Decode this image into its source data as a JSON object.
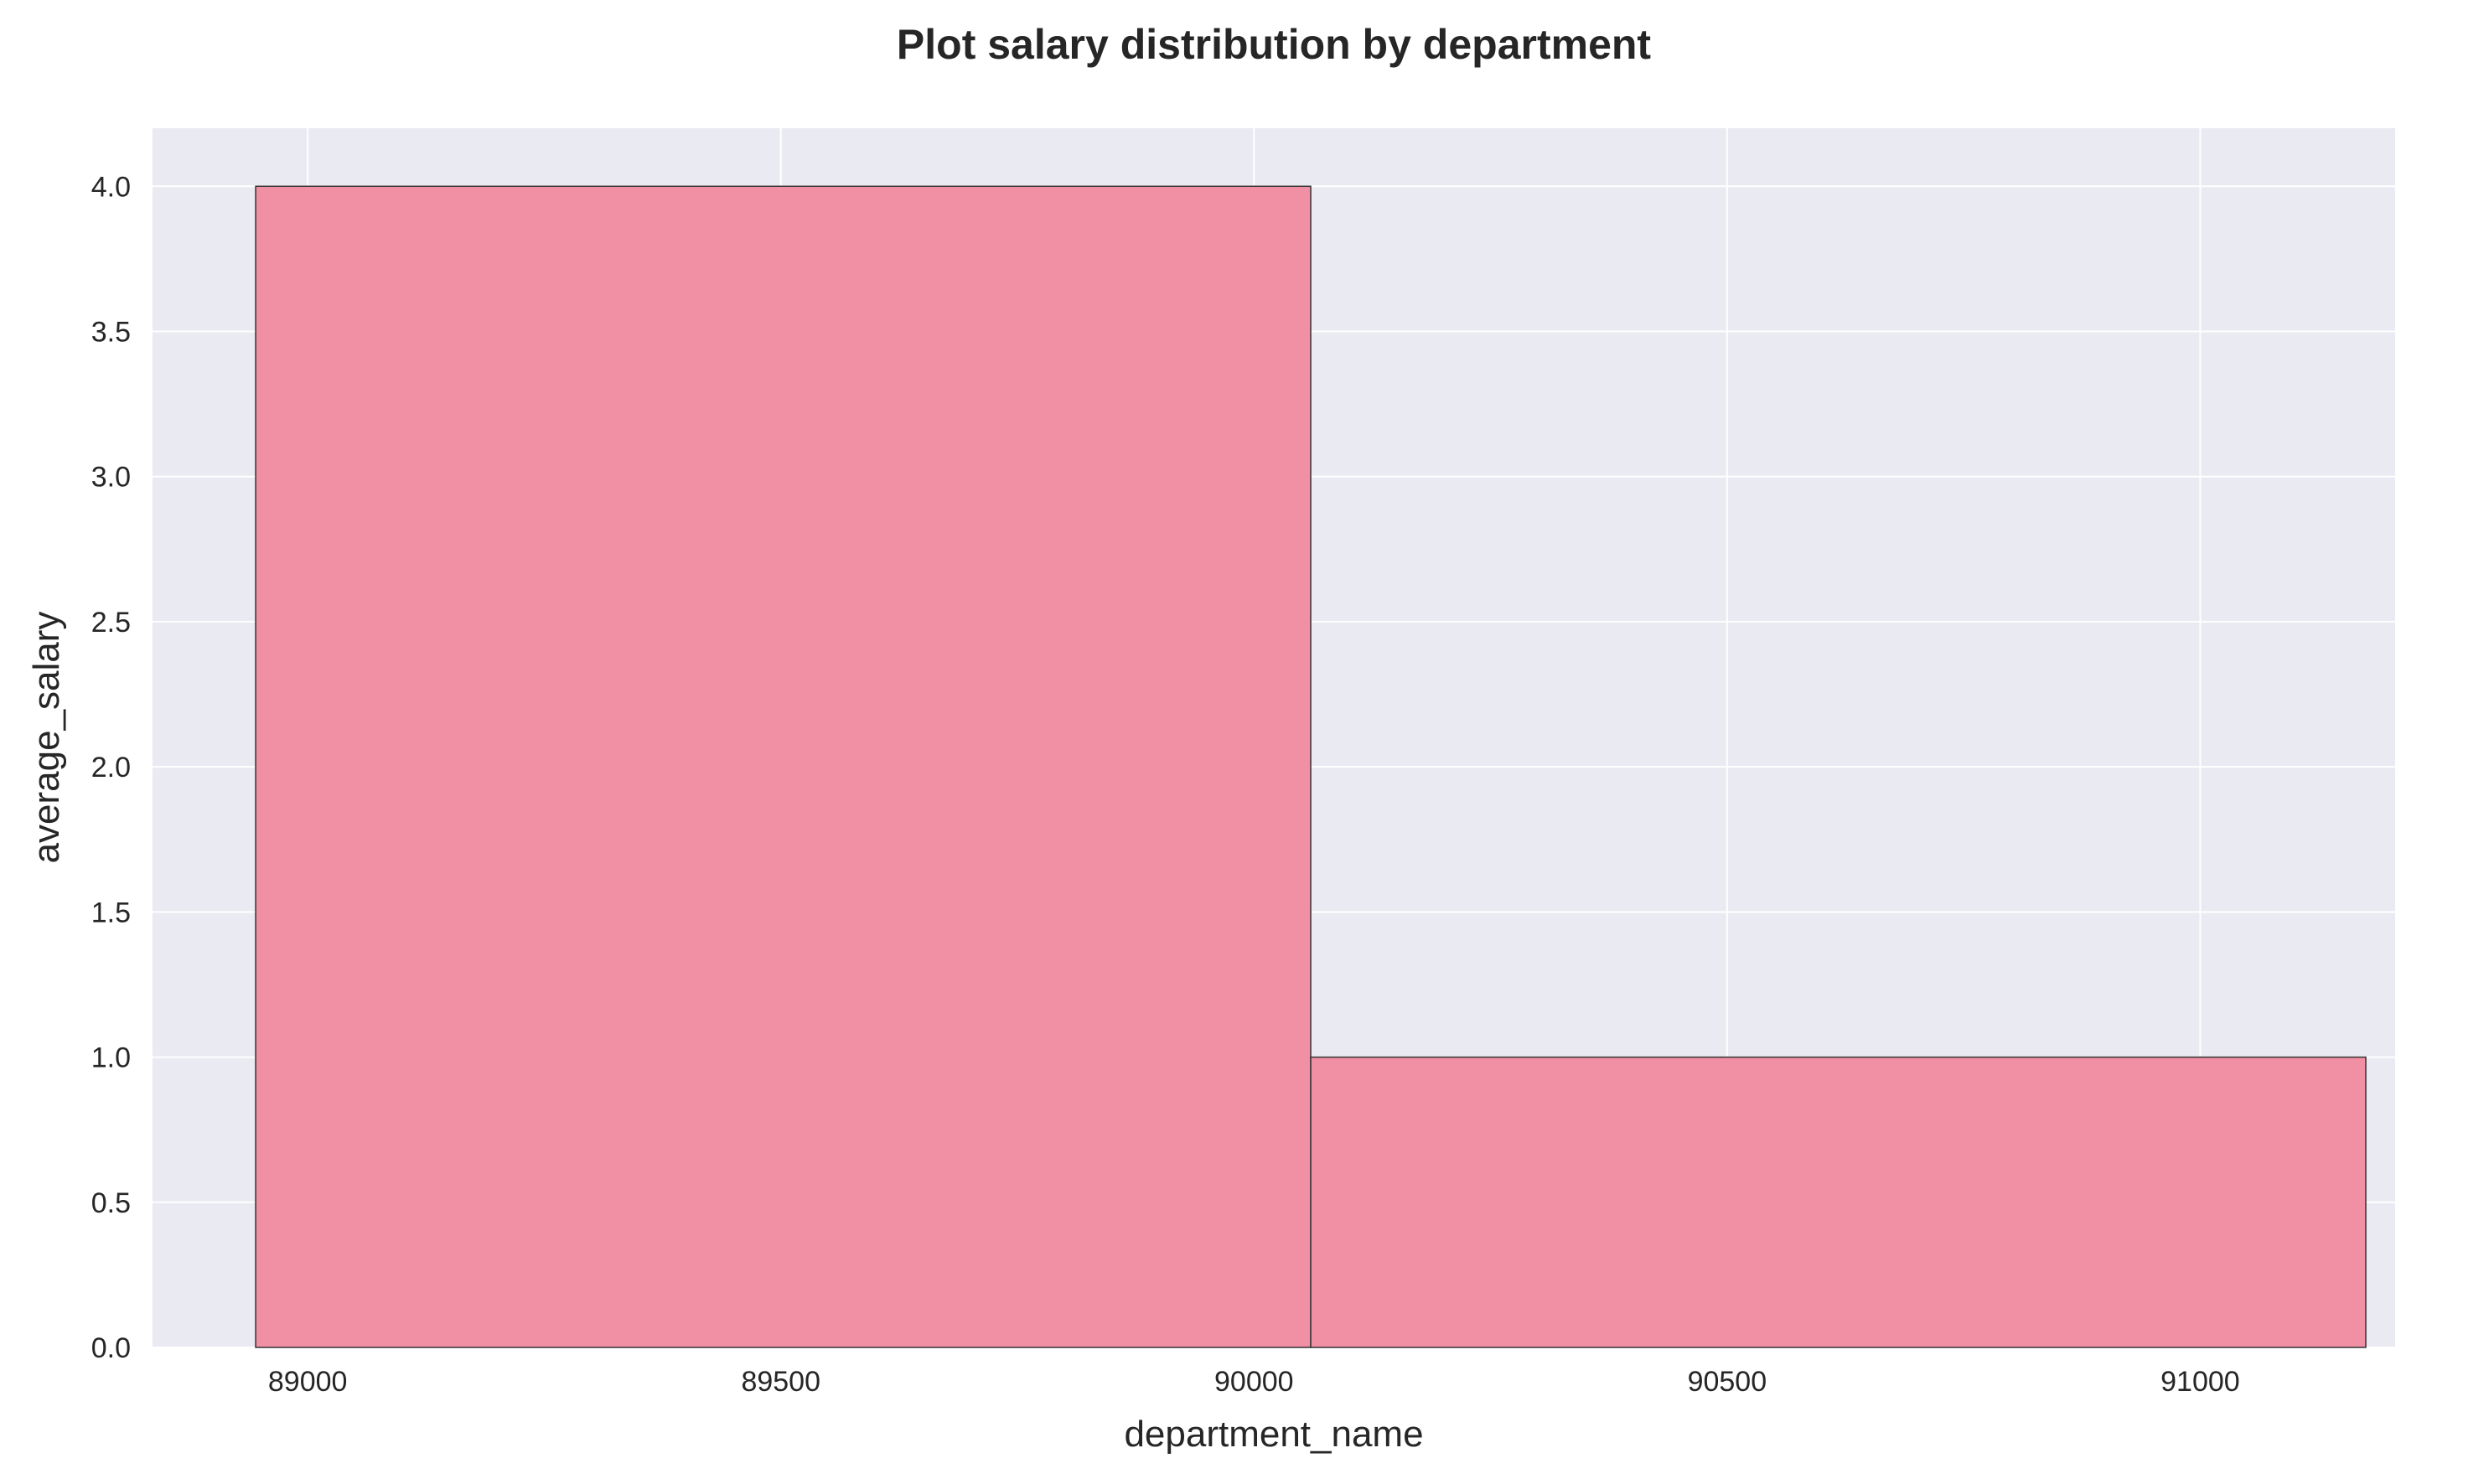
{
  "chart_data": {
    "type": "bar",
    "title": "Plot salary distribution by department",
    "xlabel": "department_name",
    "ylabel": "average_salary",
    "bins": [
      {
        "x0": 88945,
        "x1": 90060,
        "value": 4
      },
      {
        "x0": 90060,
        "x1": 91175,
        "value": 1
      }
    ],
    "xlim": [
      88836,
      91206
    ],
    "ylim": [
      0,
      4.2
    ],
    "xticks": [
      89000,
      89500,
      90000,
      90500,
      91000
    ],
    "xtick_labels": [
      "89000",
      "89500",
      "90000",
      "90500",
      "91000"
    ],
    "yticks": [
      0,
      0.5,
      1,
      1.5,
      2,
      2.5,
      3,
      3.5,
      4
    ],
    "ytick_labels": [
      "0.0",
      "0.5",
      "1.0",
      "1.5",
      "2.0",
      "2.5",
      "3.0",
      "3.5",
      "4.0"
    ],
    "grid": true,
    "colors": {
      "bar": "#f190a4",
      "bar_edge": "#333333",
      "plot_background": "#eaeaf2",
      "grid": "#ffffff",
      "text": "#262626"
    }
  }
}
